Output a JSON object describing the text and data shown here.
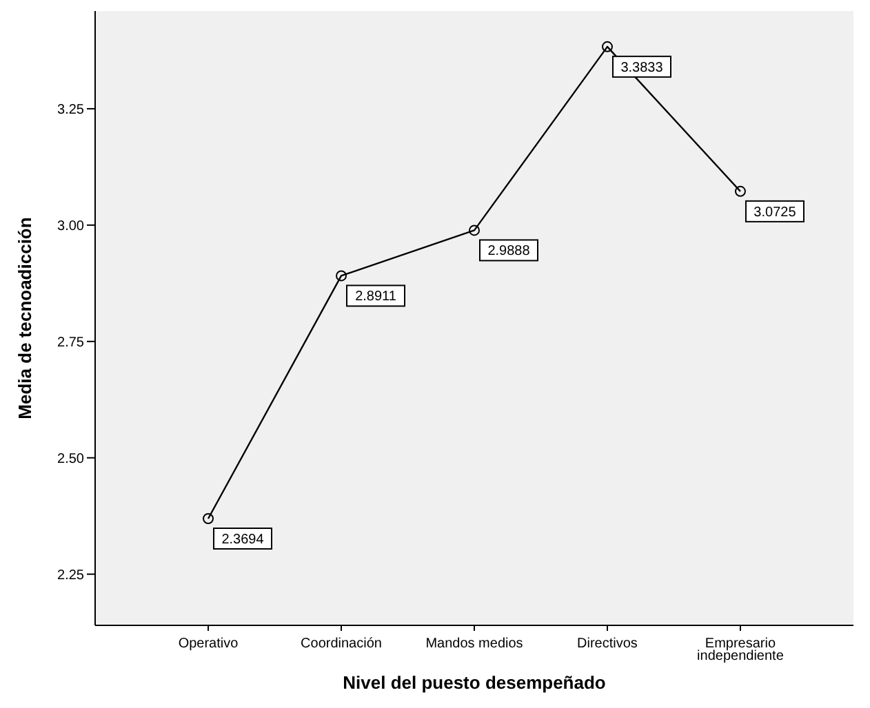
{
  "chart_data": {
    "type": "line",
    "xlabel": "Nivel del puesto desempeñado",
    "ylabel": "Media de tecnoadicción",
    "categories": [
      "Operativo",
      "Coordinación",
      "Mandos medios",
      "Directivos",
      "Empresario independiente"
    ],
    "values": [
      2.3694,
      2.8911,
      2.9888,
      3.3833,
      3.0725
    ],
    "color": "#000000",
    "ylim": [
      2.14,
      3.46
    ],
    "yticks": [
      {
        "value": 2.25,
        "label": "2.25"
      },
      {
        "value": 2.5,
        "label": "2.50"
      },
      {
        "value": 2.75,
        "label": "2.75"
      },
      {
        "value": 3,
        "label": "3.00"
      },
      {
        "value": 3.25,
        "label": "3.25"
      }
    ],
    "marker": "circle",
    "line_style": "solid",
    "grid": false,
    "data_labels": true
  }
}
